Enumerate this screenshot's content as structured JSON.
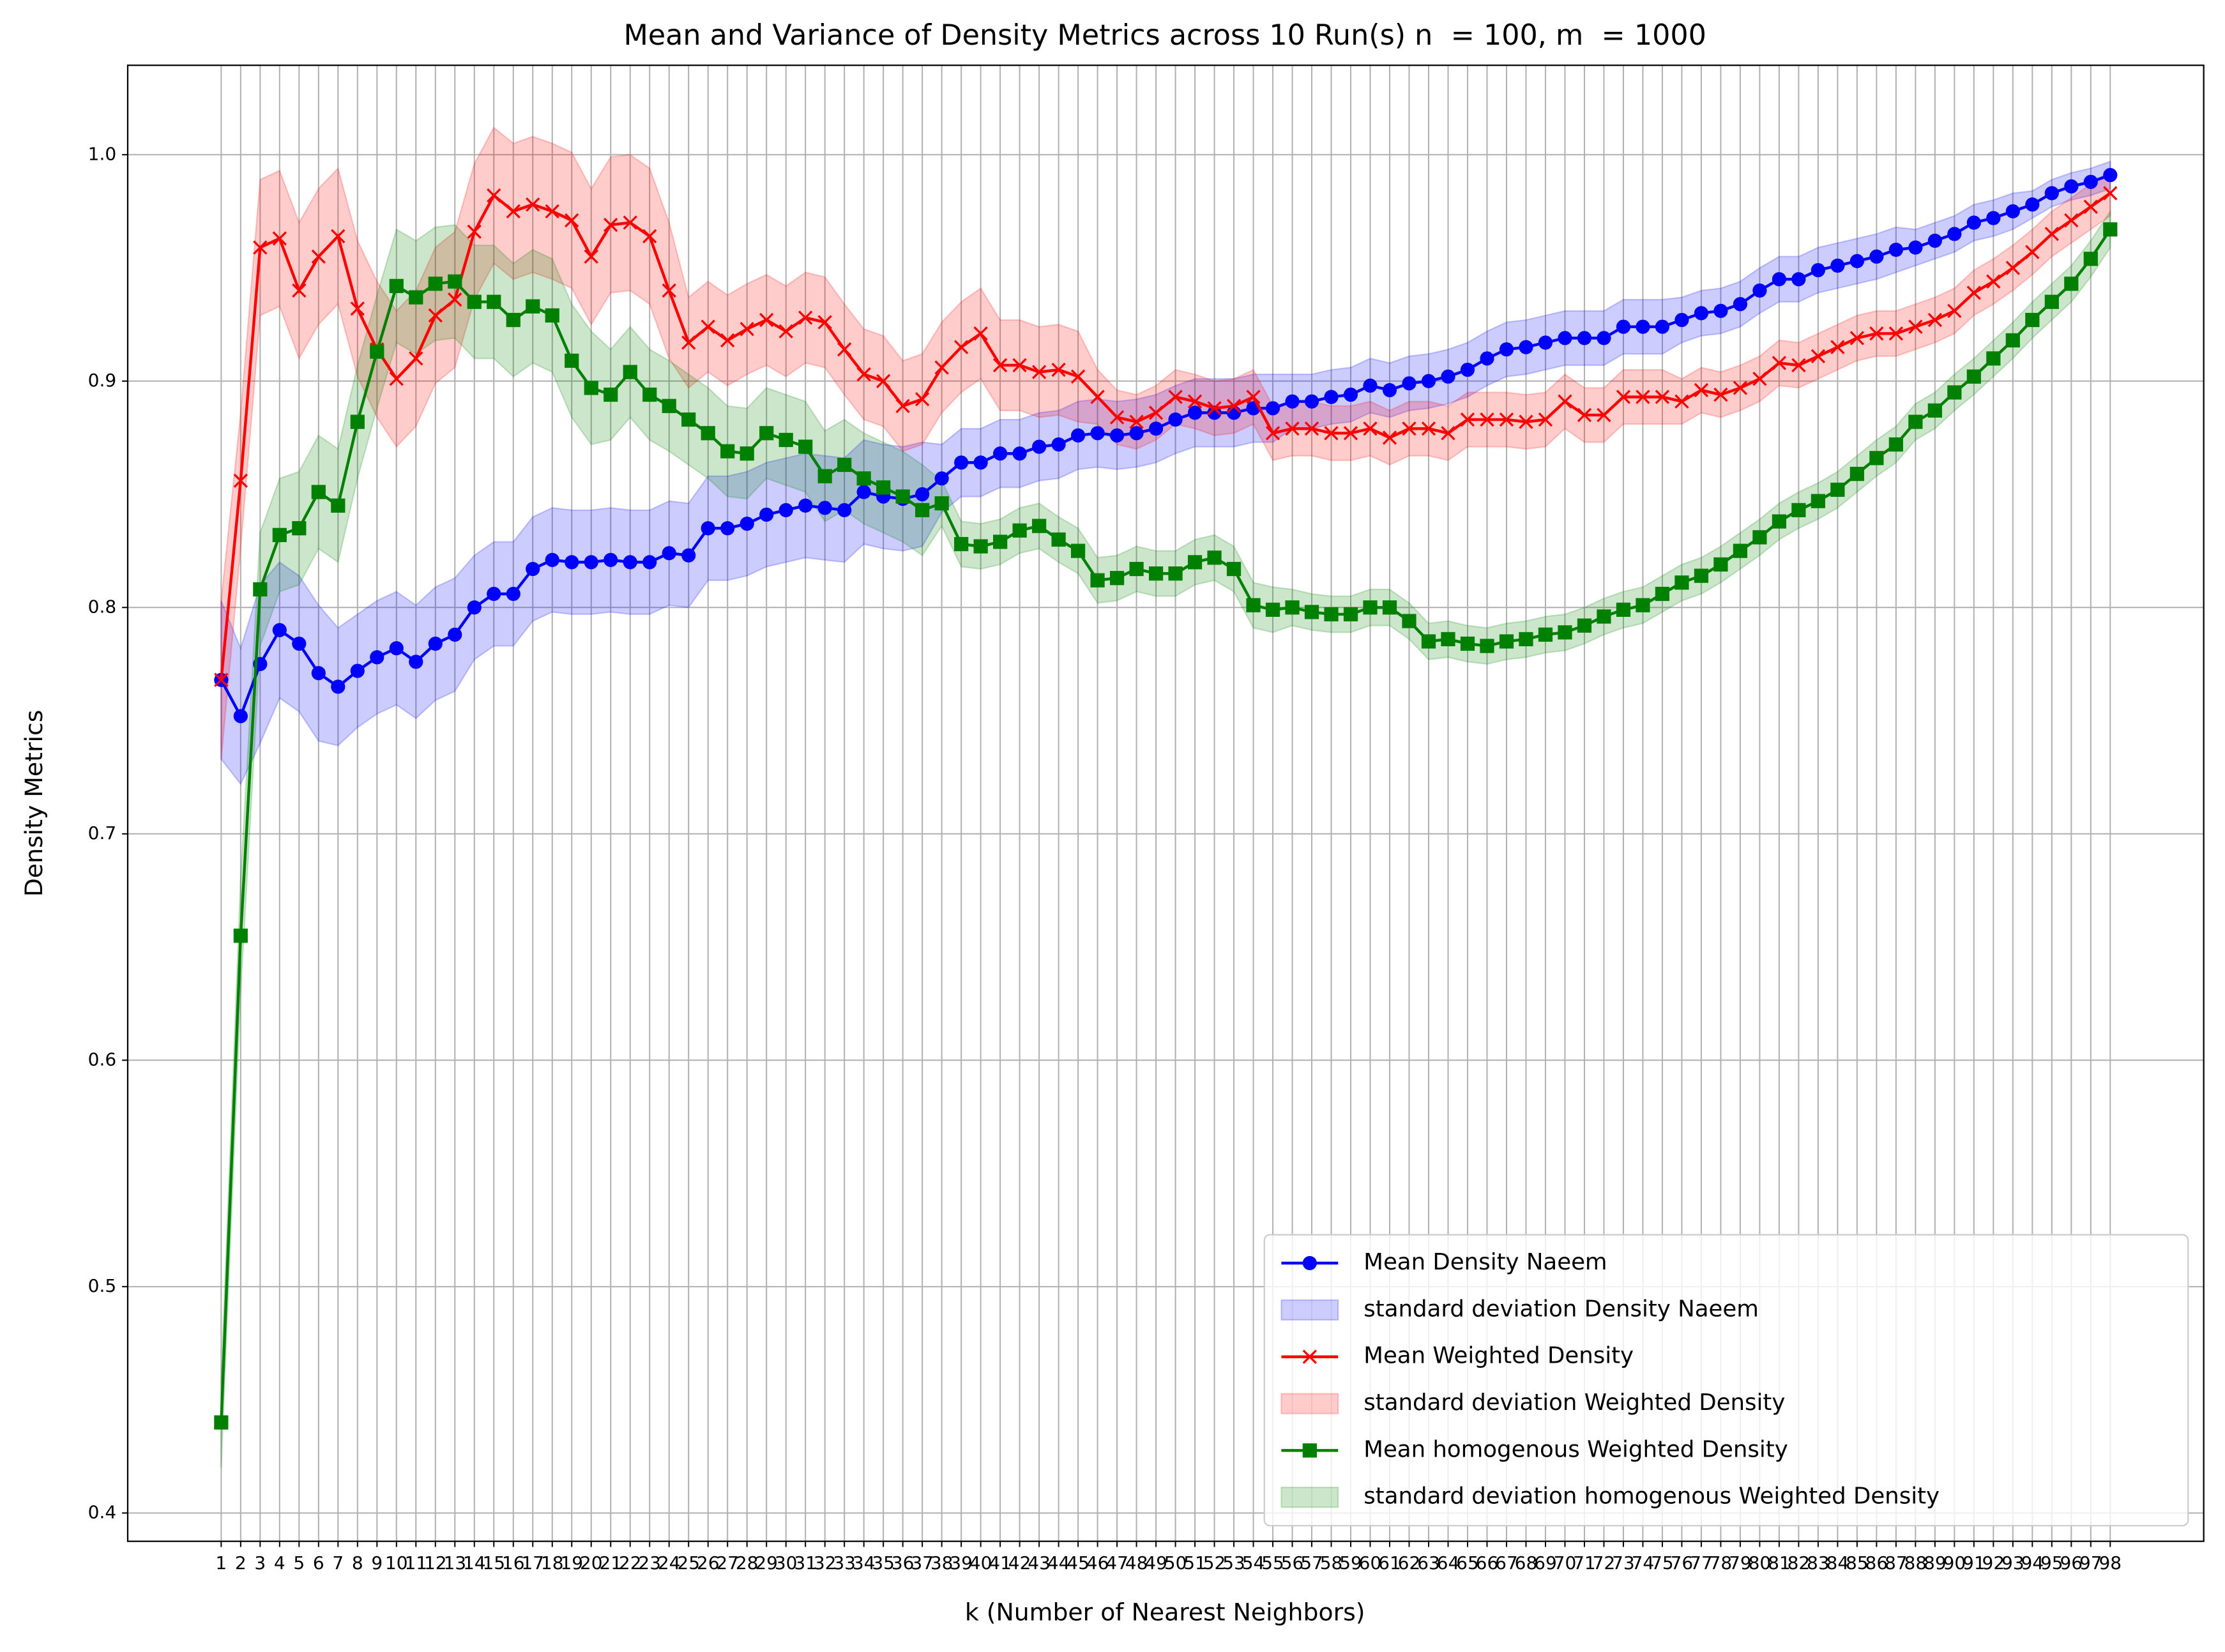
{
  "chart_data": {
    "type": "line",
    "title": "Mean and Variance of Density Metrics across 10 Run(s) n  = 100, m  = 1000",
    "xlabel": "k (Number of Nearest Neighbors)",
    "ylabel": "Density Metrics",
    "x": [
      1,
      2,
      3,
      4,
      5,
      6,
      7,
      8,
      9,
      10,
      11,
      12,
      13,
      14,
      15,
      16,
      17,
      18,
      19,
      20,
      21,
      22,
      23,
      24,
      25,
      26,
      27,
      28,
      29,
      30,
      31,
      32,
      33,
      34,
      35,
      36,
      37,
      38,
      39,
      40,
      41,
      42,
      43,
      44,
      45,
      46,
      47,
      48,
      49,
      50,
      51,
      52,
      53,
      54,
      55,
      56,
      57,
      58,
      59,
      60,
      61,
      62,
      63,
      64,
      65,
      66,
      67,
      68,
      69,
      70,
      71,
      72,
      73,
      74,
      75,
      76,
      77,
      78,
      79,
      80,
      81,
      82,
      83,
      84,
      85,
      86,
      87,
      88,
      89,
      90,
      91,
      92,
      93,
      94,
      95,
      96,
      97,
      98
    ],
    "xticks": [
      1,
      2,
      3,
      4,
      5,
      6,
      7,
      8,
      9,
      10,
      11,
      12,
      13,
      14,
      15,
      16,
      17,
      18,
      19,
      20,
      21,
      22,
      23,
      24,
      25,
      26,
      27,
      28,
      29,
      30,
      31,
      32,
      33,
      34,
      35,
      36,
      37,
      38,
      39,
      40,
      41,
      42,
      43,
      44,
      45,
      46,
      47,
      48,
      49,
      50,
      51,
      52,
      53,
      54,
      55,
      56,
      57,
      58,
      59,
      60,
      61,
      62,
      63,
      64,
      65,
      66,
      67,
      68,
      69,
      70,
      71,
      72,
      73,
      74,
      75,
      76,
      77,
      78,
      79,
      80,
      81,
      82,
      83,
      84,
      85,
      86,
      87,
      88,
      89,
      90,
      91,
      92,
      93,
      94,
      95,
      96,
      97,
      98
    ],
    "xlim": [
      -3.8,
      102.8
    ],
    "ylim": [
      0.3875,
      1.0395
    ],
    "yticks": [
      0.4,
      0.5,
      0.6,
      0.7,
      0.8,
      0.9,
      {
        "value": 1,
        "label": "1.0"
      }
    ],
    "grid": true,
    "legend_loc": "lower right",
    "series": [
      {
        "name": "Mean Density Naeem",
        "band_name": "standard deviation Density Naeem",
        "color": "#0000ff",
        "marker": "circle",
        "values": [
          0.768,
          0.752,
          0.775,
          0.79,
          0.784,
          0.771,
          0.765,
          0.772,
          0.778,
          0.782,
          0.776,
          0.784,
          0.788,
          0.8,
          0.806,
          0.806,
          0.817,
          0.821,
          0.82,
          0.82,
          0.821,
          0.82,
          0.82,
          0.824,
          0.823,
          0.835,
          0.835,
          0.837,
          0.841,
          0.843,
          0.845,
          0.844,
          0.843,
          0.851,
          0.849,
          0.848,
          0.85,
          0.857,
          0.864,
          0.864,
          0.868,
          0.868,
          0.871,
          0.872,
          0.876,
          0.877,
          0.876,
          0.877,
          0.879,
          0.883,
          0.886,
          0.886,
          0.886,
          0.888,
          0.888,
          0.891,
          0.891,
          0.893,
          0.894,
          0.898,
          0.896,
          0.899,
          0.9,
          0.902,
          0.905,
          0.91,
          0.914,
          0.915,
          0.917,
          0.919,
          0.919,
          0.919,
          0.924,
          0.924,
          0.924,
          0.927,
          0.93,
          0.931,
          0.934,
          0.94,
          0.945,
          0.945,
          0.949,
          0.951,
          0.953,
          0.955,
          0.958,
          0.959,
          0.962,
          0.965,
          0.97,
          0.972,
          0.975,
          0.978,
          0.983,
          0.986,
          0.988,
          0.991
        ],
        "std": [
          0.035,
          0.03,
          0.035,
          0.03,
          0.03,
          0.03,
          0.026,
          0.025,
          0.025,
          0.025,
          0.025,
          0.025,
          0.025,
          0.023,
          0.023,
          0.023,
          0.023,
          0.023,
          0.023,
          0.023,
          0.023,
          0.023,
          0.023,
          0.023,
          0.023,
          0.023,
          0.023,
          0.023,
          0.023,
          0.023,
          0.023,
          0.023,
          0.023,
          0.023,
          0.023,
          0.023,
          0.023,
          0.015,
          0.015,
          0.015,
          0.015,
          0.015,
          0.015,
          0.015,
          0.015,
          0.015,
          0.015,
          0.015,
          0.015,
          0.015,
          0.015,
          0.015,
          0.015,
          0.015,
          0.015,
          0.012,
          0.012,
          0.012,
          0.012,
          0.012,
          0.012,
          0.012,
          0.012,
          0.012,
          0.012,
          0.012,
          0.012,
          0.012,
          0.012,
          0.012,
          0.012,
          0.012,
          0.012,
          0.012,
          0.012,
          0.01,
          0.01,
          0.01,
          0.01,
          0.01,
          0.01,
          0.01,
          0.01,
          0.01,
          0.01,
          0.01,
          0.01,
          0.008,
          0.008,
          0.008,
          0.008,
          0.008,
          0.008,
          0.006,
          0.006,
          0.006,
          0.006,
          0.006
        ]
      },
      {
        "name": "Mean Weighted Density",
        "band_name": "standard deviation Weighted Density",
        "color": "#ff0000",
        "marker": "x",
        "values": [
          0.768,
          0.856,
          0.959,
          0.963,
          0.94,
          0.955,
          0.964,
          0.932,
          0.914,
          0.901,
          0.91,
          0.929,
          0.936,
          0.966,
          0.982,
          0.975,
          0.978,
          0.975,
          0.971,
          0.955,
          0.969,
          0.97,
          0.964,
          0.94,
          0.917,
          0.924,
          0.918,
          0.923,
          0.927,
          0.922,
          0.928,
          0.926,
          0.914,
          0.903,
          0.9,
          0.889,
          0.892,
          0.906,
          0.915,
          0.921,
          0.907,
          0.907,
          0.904,
          0.905,
          0.902,
          0.893,
          0.884,
          0.882,
          0.886,
          0.893,
          0.891,
          0.888,
          0.889,
          0.893,
          0.877,
          0.879,
          0.879,
          0.877,
          0.877,
          0.879,
          0.875,
          0.879,
          0.879,
          0.877,
          0.883,
          0.883,
          0.883,
          0.882,
          0.883,
          0.891,
          0.885,
          0.885,
          0.893,
          0.893,
          0.893,
          0.891,
          0.896,
          0.894,
          0.897,
          0.901,
          0.908,
          0.907,
          0.911,
          0.915,
          0.919,
          0.921,
          0.921,
          0.924,
          0.927,
          0.931,
          0.939,
          0.944,
          0.95,
          0.957,
          0.965,
          0.971,
          0.977,
          0.983
        ],
        "std": [
          0.035,
          0.03,
          0.03,
          0.03,
          0.03,
          0.03,
          0.03,
          0.03,
          0.03,
          0.03,
          0.03,
          0.03,
          0.03,
          0.03,
          0.03,
          0.03,
          0.03,
          0.03,
          0.03,
          0.03,
          0.03,
          0.03,
          0.03,
          0.03,
          0.02,
          0.02,
          0.02,
          0.02,
          0.02,
          0.02,
          0.02,
          0.02,
          0.02,
          0.02,
          0.02,
          0.02,
          0.02,
          0.02,
          0.02,
          0.02,
          0.02,
          0.02,
          0.02,
          0.02,
          0.02,
          0.012,
          0.012,
          0.012,
          0.012,
          0.012,
          0.012,
          0.012,
          0.012,
          0.012,
          0.012,
          0.012,
          0.012,
          0.012,
          0.012,
          0.012,
          0.012,
          0.012,
          0.012,
          0.012,
          0.012,
          0.012,
          0.012,
          0.012,
          0.012,
          0.012,
          0.012,
          0.012,
          0.012,
          0.012,
          0.012,
          0.01,
          0.01,
          0.01,
          0.01,
          0.01,
          0.01,
          0.01,
          0.01,
          0.01,
          0.01,
          0.01,
          0.01,
          0.01,
          0.01,
          0.01,
          0.01,
          0.01,
          0.01,
          0.01,
          0.01,
          0.01,
          0.01,
          0.01
        ]
      },
      {
        "name": "Mean homogenous Weighted Density",
        "band_name": "standard deviation homogenous Weighted Density",
        "color": "#008000",
        "marker": "square",
        "values": [
          0.44,
          0.655,
          0.808,
          0.832,
          0.835,
          0.851,
          0.845,
          0.882,
          0.913,
          0.942,
          0.937,
          0.943,
          0.944,
          0.935,
          0.935,
          0.927,
          0.933,
          0.929,
          0.909,
          0.897,
          0.894,
          0.904,
          0.894,
          0.889,
          0.883,
          0.877,
          0.869,
          0.868,
          0.877,
          0.874,
          0.871,
          0.858,
          0.863,
          0.857,
          0.853,
          0.849,
          0.843,
          0.846,
          0.828,
          0.827,
          0.829,
          0.834,
          0.836,
          0.83,
          0.825,
          0.812,
          0.813,
          0.817,
          0.815,
          0.815,
          0.82,
          0.822,
          0.817,
          0.801,
          0.799,
          0.8,
          0.798,
          0.797,
          0.797,
          0.8,
          0.8,
          0.794,
          0.785,
          0.786,
          0.784,
          0.783,
          0.785,
          0.786,
          0.788,
          0.789,
          0.792,
          0.796,
          0.799,
          0.801,
          0.806,
          0.811,
          0.814,
          0.819,
          0.825,
          0.831,
          0.838,
          0.843,
          0.847,
          0.852,
          0.859,
          0.866,
          0.872,
          0.882,
          0.887,
          0.895,
          0.902,
          0.91,
          0.918,
          0.927,
          0.935,
          0.943,
          0.954,
          0.967
        ],
        "std": [
          0.02,
          0.025,
          0.025,
          0.025,
          0.025,
          0.025,
          0.025,
          0.025,
          0.025,
          0.025,
          0.025,
          0.025,
          0.025,
          0.025,
          0.025,
          0.025,
          0.025,
          0.025,
          0.025,
          0.025,
          0.02,
          0.02,
          0.02,
          0.02,
          0.02,
          0.02,
          0.02,
          0.02,
          0.02,
          0.02,
          0.02,
          0.02,
          0.02,
          0.02,
          0.02,
          0.02,
          0.02,
          0.01,
          0.01,
          0.01,
          0.01,
          0.01,
          0.01,
          0.01,
          0.01,
          0.01,
          0.01,
          0.01,
          0.01,
          0.01,
          0.01,
          0.01,
          0.01,
          0.01,
          0.01,
          0.008,
          0.008,
          0.008,
          0.008,
          0.008,
          0.008,
          0.008,
          0.008,
          0.008,
          0.008,
          0.008,
          0.008,
          0.008,
          0.008,
          0.008,
          0.008,
          0.008,
          0.008,
          0.008,
          0.008,
          0.008,
          0.008,
          0.008,
          0.008,
          0.008,
          0.008,
          0.008,
          0.008,
          0.008,
          0.008,
          0.008,
          0.008,
          0.008,
          0.008,
          0.008,
          0.008,
          0.008,
          0.008,
          0.008,
          0.008,
          0.008,
          0.008,
          0.008
        ]
      }
    ]
  }
}
